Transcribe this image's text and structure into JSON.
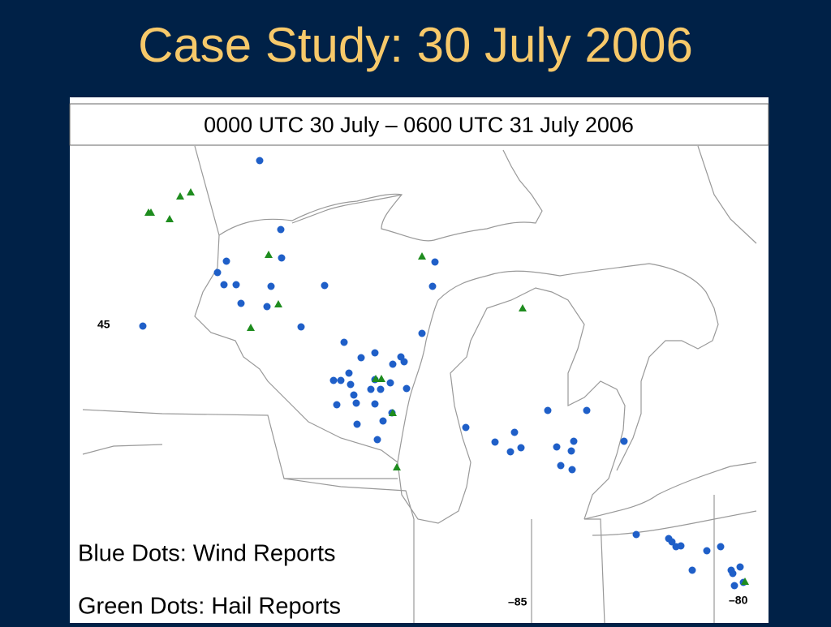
{
  "header": {
    "title": "Case Study: 30 July 2006"
  },
  "map": {
    "caption": "0000 UTC 30 July – 0600 UTC 31 July 2006",
    "lat_label": "45",
    "lon_labels": [
      "–85",
      "–80"
    ]
  },
  "legend": {
    "wind": "Blue Dots: Wind Reports",
    "hail": "Green Dots: Hail Reports"
  }
}
